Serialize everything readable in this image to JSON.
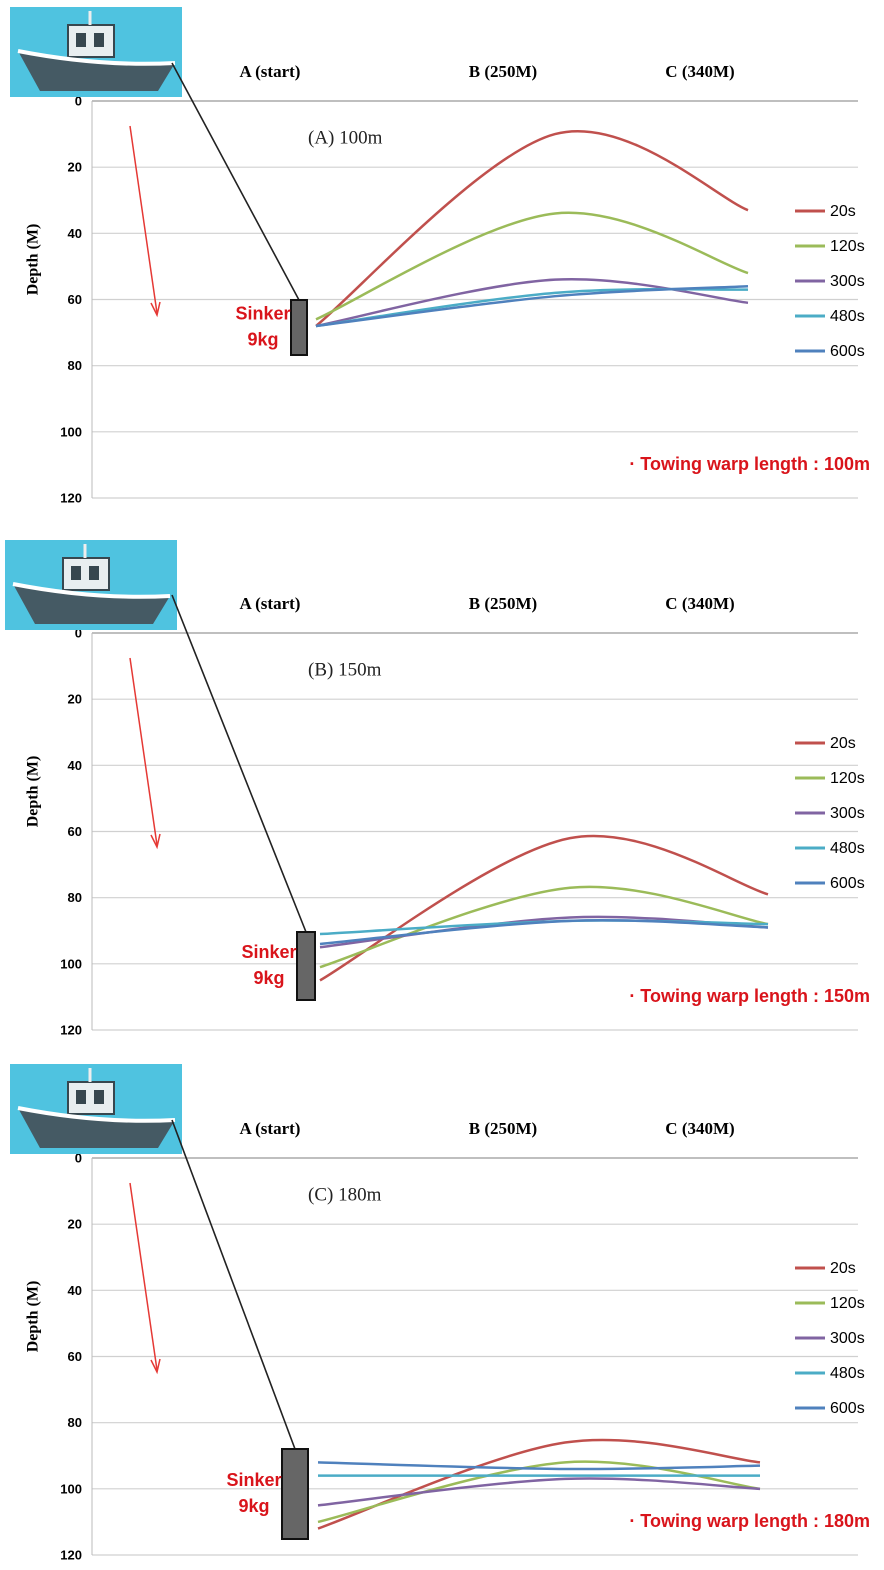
{
  "chart_data": [
    {
      "type": "line",
      "title": "(A) 100m",
      "categories": [
        "A (start)",
        "B (250M)",
        "C (340M)"
      ],
      "ylabel": "Depth (M)",
      "ylim": [
        0,
        120
      ],
      "yticks": [
        0,
        20,
        40,
        60,
        80,
        100,
        120
      ],
      "grid": true,
      "legend": "right",
      "annotations": [
        "Sinker",
        "9kg"
      ],
      "note": "· Towing warp length : 100m",
      "series": [
        {
          "name": "20s",
          "color": "#c0504d",
          "values": [
            68,
            10,
            33
          ]
        },
        {
          "name": "120s",
          "color": "#9bbb59",
          "values": [
            66,
            34,
            52
          ]
        },
        {
          "name": "300s",
          "color": "#8064a2",
          "values": [
            68,
            54,
            61
          ]
        },
        {
          "name": "480s",
          "color": "#4bacc6",
          "values": [
            68,
            58,
            57
          ]
        },
        {
          "name": "600s",
          "color": "#4f81bd",
          "values": [
            68,
            59,
            56
          ]
        }
      ]
    },
    {
      "type": "line",
      "title": "(B) 150m",
      "categories": [
        "A (start)",
        "B (250M)",
        "C (340M)"
      ],
      "ylabel": "Depth (M)",
      "ylim": [
        0,
        120
      ],
      "yticks": [
        0,
        20,
        40,
        60,
        80,
        100,
        120
      ],
      "grid": true,
      "legend": "right",
      "annotations": [
        "Sinker",
        "9kg"
      ],
      "note": "· Towing warp length : 150m",
      "series": [
        {
          "name": "20s",
          "color": "#c0504d",
          "values": [
            105,
            62,
            79
          ]
        },
        {
          "name": "120s",
          "color": "#9bbb59",
          "values": [
            101,
            77,
            88
          ]
        },
        {
          "name": "300s",
          "color": "#8064a2",
          "values": [
            95,
            86,
            89
          ]
        },
        {
          "name": "480s",
          "color": "#4bacc6",
          "values": [
            91,
            87,
            88
          ]
        },
        {
          "name": "600s",
          "color": "#4f81bd",
          "values": [
            94,
            87,
            89
          ]
        }
      ]
    },
    {
      "type": "line",
      "title": "(C) 180m",
      "categories": [
        "A (start)",
        "B (250M)",
        "C (340M)"
      ],
      "ylabel": "Depth (M)",
      "ylim": [
        0,
        120
      ],
      "yticks": [
        0,
        20,
        40,
        60,
        80,
        100,
        120
      ],
      "grid": true,
      "legend": "right",
      "annotations": [
        "Sinker",
        "9kg"
      ],
      "note": "· Towing warp length : 180m",
      "series": [
        {
          "name": "20s",
          "color": "#c0504d",
          "values": [
            112,
            86,
            92
          ]
        },
        {
          "name": "120s",
          "color": "#9bbb59",
          "values": [
            110,
            92,
            100
          ]
        },
        {
          "name": "300s",
          "color": "#8064a2",
          "values": [
            105,
            97,
            100
          ]
        },
        {
          "name": "480s",
          "color": "#4bacc6",
          "values": [
            96,
            96,
            96
          ]
        },
        {
          "name": "600s",
          "color": "#4f81bd",
          "values": [
            92,
            94,
            93
          ]
        }
      ]
    }
  ]
}
